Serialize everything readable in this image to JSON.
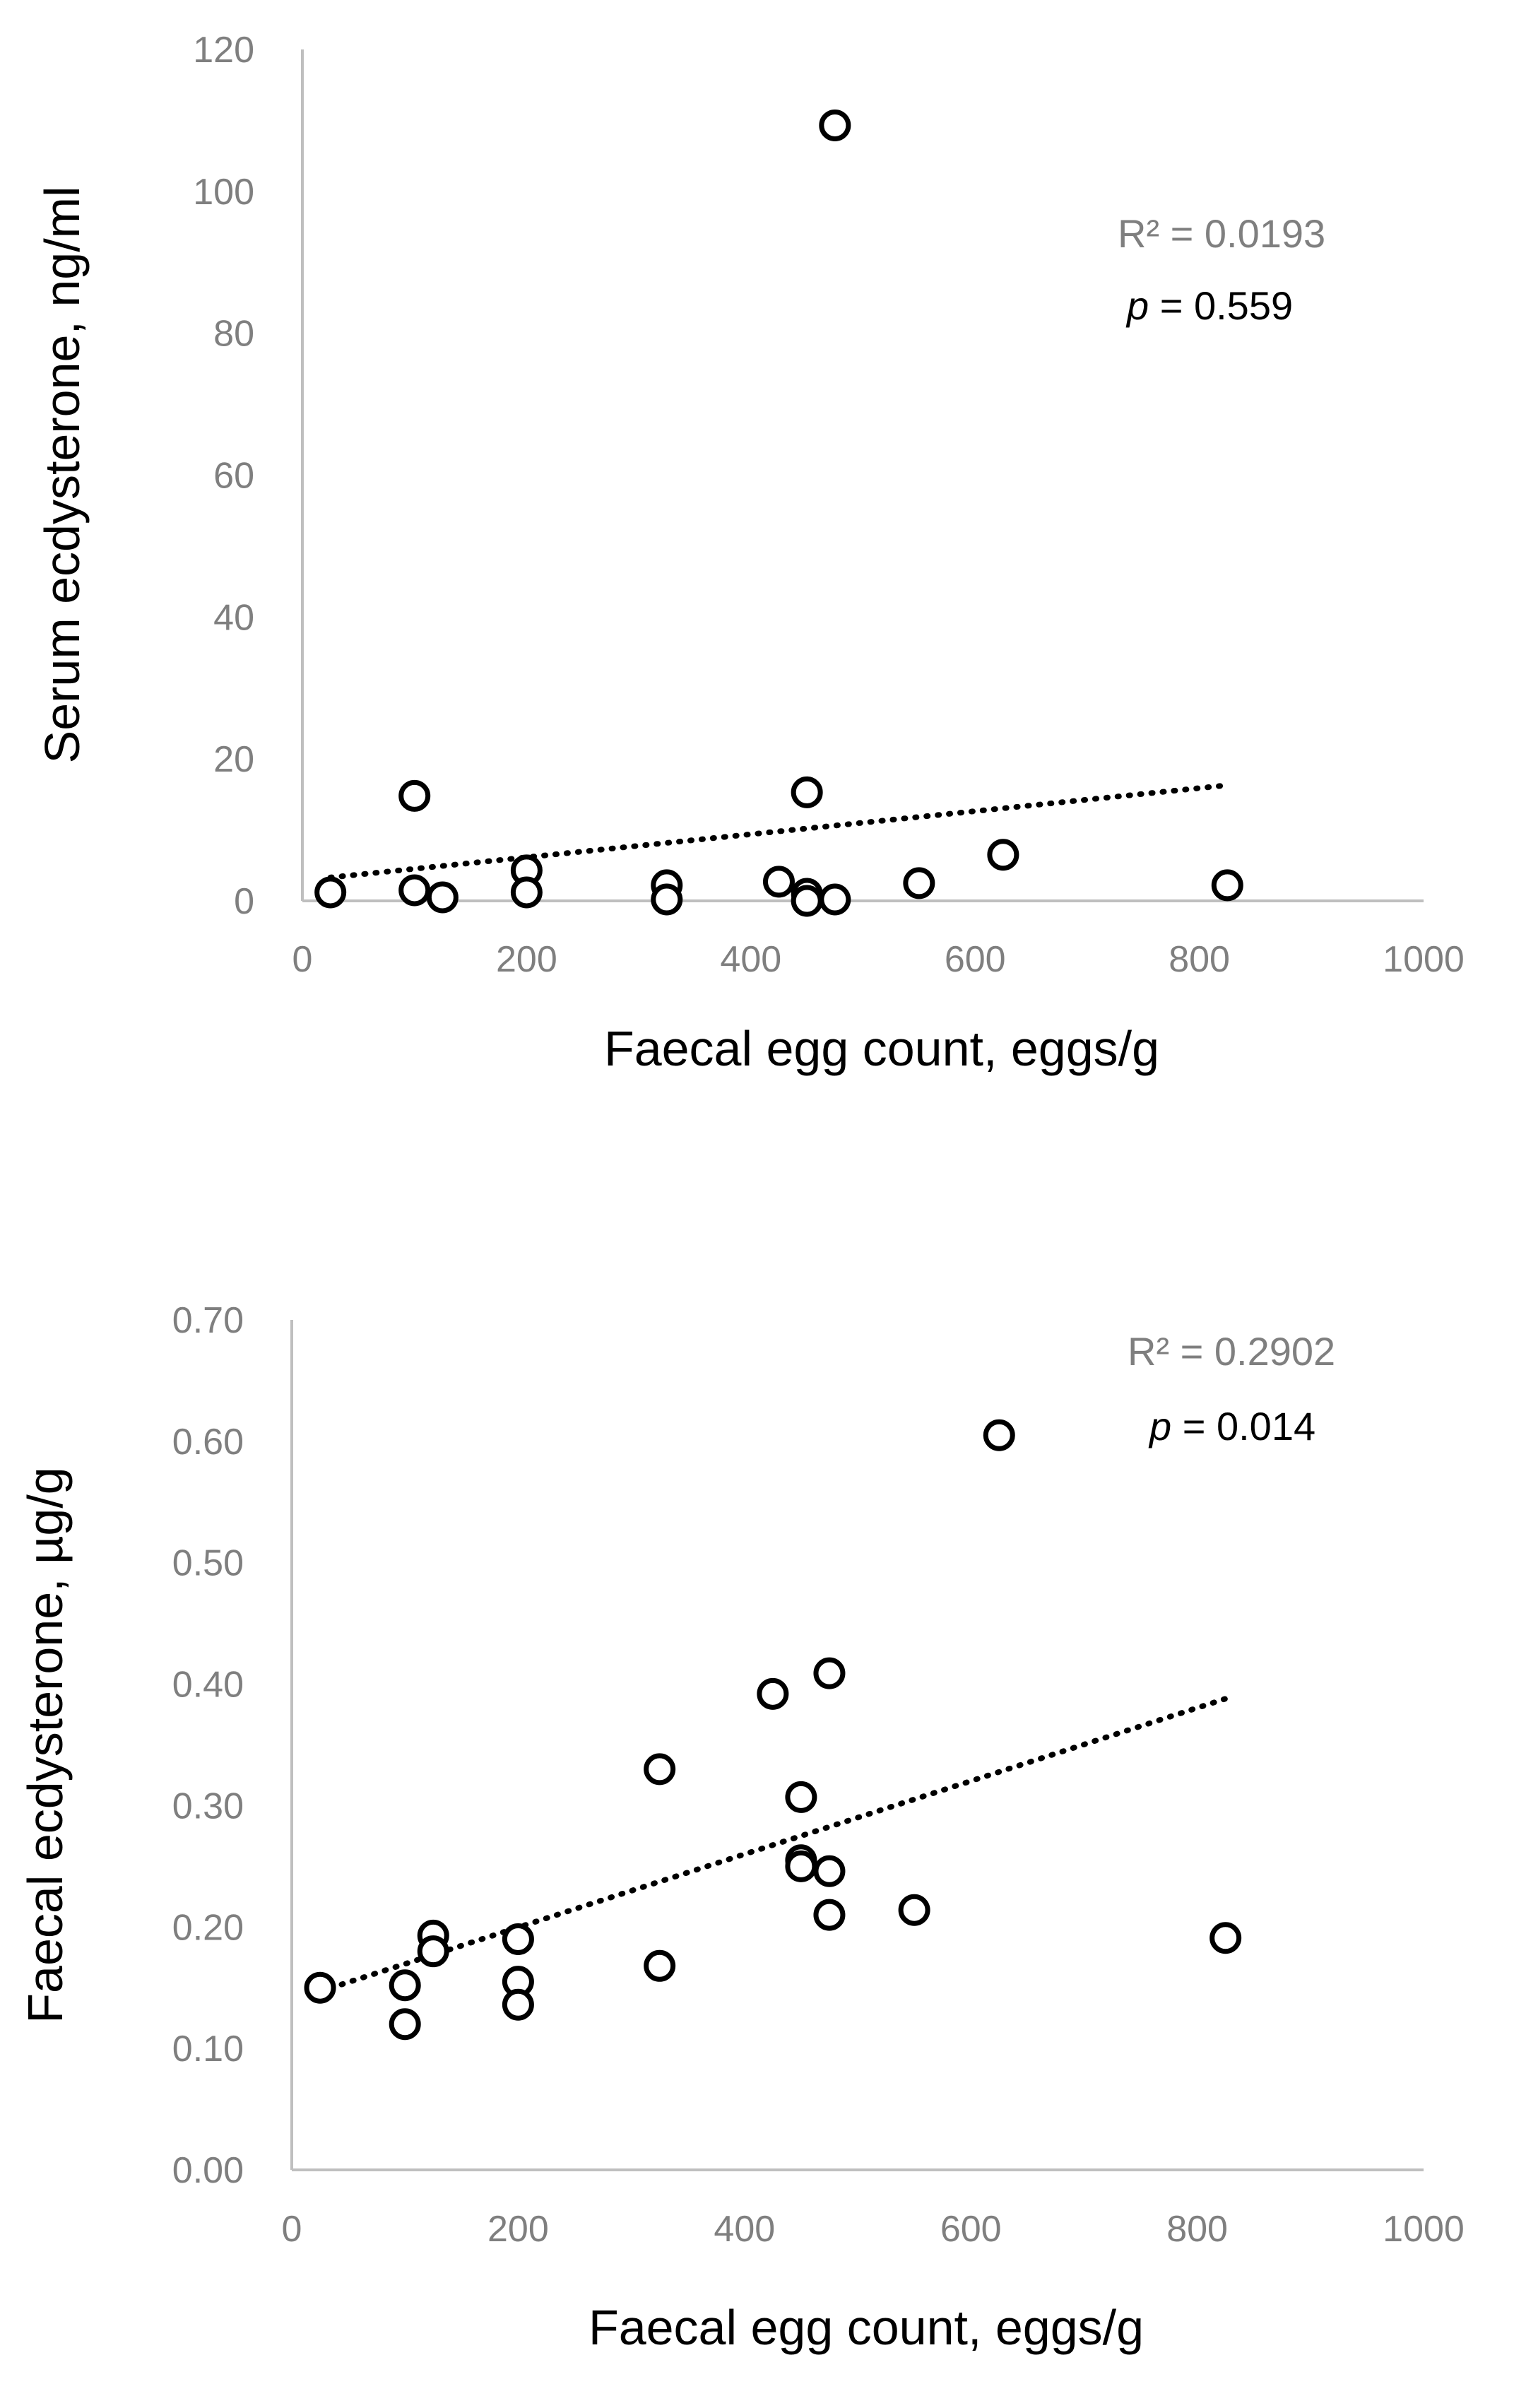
{
  "chart_data": [
    {
      "type": "scatter",
      "title": "",
      "xlabel": "Faecal egg count, eggs/g",
      "ylabel": "Serum ecdysterone, ng/ml",
      "xlim": [
        0,
        1000
      ],
      "ylim": [
        0,
        120
      ],
      "x_ticks": [
        "0",
        "200",
        "400",
        "600",
        "800",
        "1000"
      ],
      "y_ticks": [
        "0",
        "20",
        "40",
        "60",
        "80",
        "100",
        "120"
      ],
      "trendline": {
        "style": "dotted",
        "x": [
          25,
          825
        ],
        "y": [
          3.3,
          16.3
        ]
      },
      "annotation": {
        "r2_label": "R² = 0.0193",
        "p_italic": "p",
        "p_rest": " = 0.559"
      },
      "points": [
        [
          25,
          1.2
        ],
        [
          100,
          14.8
        ],
        [
          100,
          1.5
        ],
        [
          125,
          0.5
        ],
        [
          200,
          4.3
        ],
        [
          200,
          1.2
        ],
        [
          325,
          2.2
        ],
        [
          325,
          0.2
        ],
        [
          425,
          2.7
        ],
        [
          450,
          15.3
        ],
        [
          450,
          1.0
        ],
        [
          450,
          0.0
        ],
        [
          475,
          109.3
        ],
        [
          475,
          0.2
        ],
        [
          550,
          2.5
        ],
        [
          625,
          6.5
        ],
        [
          825,
          2.2
        ]
      ]
    },
    {
      "type": "scatter",
      "title": "",
      "xlabel": "Faecal egg count, eggs/g",
      "ylabel": "Faecal ecdysterone, µg/g",
      "xlim": [
        0,
        1000
      ],
      "ylim": [
        0,
        0.7
      ],
      "x_ticks": [
        "0",
        "200",
        "400",
        "600",
        "800",
        "1000"
      ],
      "y_ticks": [
        "0.00",
        "0.10",
        "0.20",
        "0.30",
        "0.40",
        "0.50",
        "0.60",
        "0.70"
      ],
      "trendline": {
        "style": "dotted",
        "x": [
          25,
          825
        ],
        "y": [
          0.147,
          0.388
        ]
      },
      "annotation": {
        "r2_label": "R² = 0.2902",
        "p_italic": "p",
        "p_rest": " = 0.014"
      },
      "points": [
        [
          25,
          0.15
        ],
        [
          100,
          0.152
        ],
        [
          100,
          0.12
        ],
        [
          125,
          0.193
        ],
        [
          125,
          0.18
        ],
        [
          200,
          0.19
        ],
        [
          200,
          0.155
        ],
        [
          200,
          0.136
        ],
        [
          325,
          0.33
        ],
        [
          325,
          0.168
        ],
        [
          425,
          0.392
        ],
        [
          450,
          0.307
        ],
        [
          450,
          0.255
        ],
        [
          450,
          0.25
        ],
        [
          475,
          0.409
        ],
        [
          475,
          0.246
        ],
        [
          475,
          0.21
        ],
        [
          550,
          0.214
        ],
        [
          625,
          0.605
        ],
        [
          825,
          0.191
        ]
      ]
    }
  ]
}
